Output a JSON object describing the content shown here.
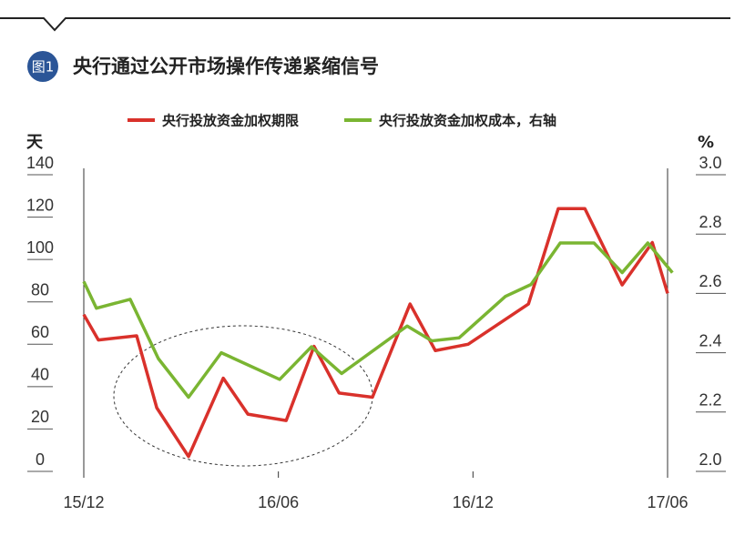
{
  "chart_data": {
    "type": "line",
    "badge": "图1",
    "title": "央行通过公开市场操作传递紧缩信号",
    "ylabel": "天",
    "y2label": "%",
    "xlim": [
      0,
      18
    ],
    "xticks": [
      {
        "value": 0,
        "label": "15/12"
      },
      {
        "value": 6,
        "label": "16/06"
      },
      {
        "value": 12,
        "label": "16/12"
      },
      {
        "value": 18,
        "label": "17/06"
      }
    ],
    "ylim": [
      0,
      140
    ],
    "yticks": [
      0,
      20,
      40,
      60,
      80,
      100,
      120,
      140
    ],
    "y2lim": [
      2,
      3
    ],
    "y2ticks": [
      {
        "value": 2,
        "label": "2.0"
      },
      2.2,
      2.4,
      2.6,
      2.8,
      {
        "value": 3,
        "label": "3.0"
      }
    ],
    "series": [
      {
        "name": "央行投放资金加权期限",
        "color": "#d9312b",
        "x": [
          0,
          0.45,
          1.63,
          2.25,
          3.23,
          4.3,
          5.06,
          6.24,
          7.1,
          7.87,
          8.9,
          10.06,
          10.84,
          11.85,
          13.71,
          14.63,
          15.45,
          16.6,
          17.53,
          18
        ],
        "values": [
          74,
          62,
          64,
          30,
          7,
          44,
          27,
          24,
          59,
          37,
          35,
          79,
          57,
          60,
          79,
          124,
          124,
          88,
          108,
          84
        ]
      },
      {
        "name": "央行投放资金加权成本，右轴",
        "color": "#7ab532",
        "axis": "y2",
        "x": [
          0,
          0.39,
          1.43,
          2.3,
          3.23,
          4.24,
          6.04,
          7.02,
          7.95,
          9.97,
          10.73,
          11.57,
          13.0,
          13.79,
          14.69,
          15.73,
          16.6,
          17.39,
          18.15
        ],
        "values": [
          2.64,
          2.55,
          2.58,
          2.38,
          2.25,
          2.4,
          2.31,
          2.42,
          2.33,
          2.49,
          2.44,
          2.45,
          2.59,
          2.63,
          2.77,
          2.77,
          2.67,
          2.77,
          2.67
        ]
      }
    ]
  }
}
